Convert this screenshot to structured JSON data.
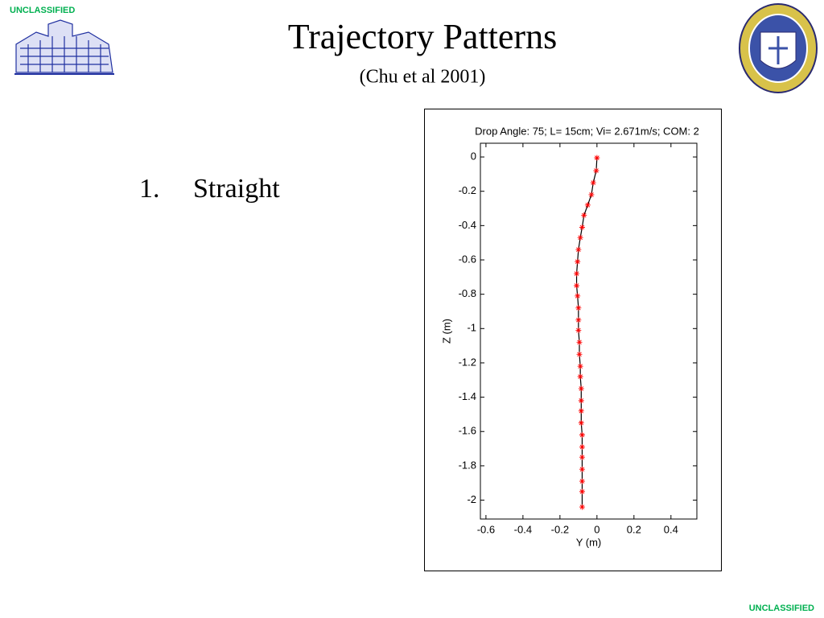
{
  "header": {
    "classification_top": "UNCLASSIFIED",
    "title": "Trajectory Patterns",
    "subtitle": "(Chu et al 2001)"
  },
  "list": {
    "items": [
      {
        "number": "1.",
        "text": "Straight"
      }
    ]
  },
  "footer": {
    "classification_bottom": "UNCLASSIFIED"
  },
  "chart_data": {
    "type": "line",
    "title": "Drop Angle: 75; L= 15cm; Vi= 2.671m/s; COM: 2",
    "x_label": "Y (m)",
    "y_label": "Z (m)",
    "x": [
      0,
      -0.004,
      -0.02,
      -0.03,
      -0.05,
      -0.07,
      -0.08,
      -0.09,
      -0.1,
      -0.105,
      -0.11,
      -0.11,
      -0.105,
      -0.1,
      -0.1,
      -0.1,
      -0.095,
      -0.095,
      -0.09,
      -0.09,
      -0.085,
      -0.085,
      -0.085,
      -0.085,
      -0.08,
      -0.08,
      -0.08,
      -0.08,
      -0.08,
      -0.08,
      -0.08
    ],
    "series": [
      {
        "color": "#000000",
        "marker_color": "#ff0000",
        "values": [
          -0.005,
          -0.08,
          -0.15,
          -0.22,
          -0.28,
          -0.34,
          -0.41,
          -0.47,
          -0.54,
          -0.61,
          -0.68,
          -0.75,
          -0.81,
          -0.88,
          -0.95,
          -1.01,
          -1.08,
          -1.15,
          -1.22,
          -1.28,
          -1.35,
          -1.42,
          -1.48,
          -1.55,
          -1.62,
          -1.69,
          -1.75,
          -1.82,
          -1.89,
          -1.95,
          -2.04
        ]
      }
    ],
    "xlim": [
      -0.63,
      0.54
    ],
    "ylim": [
      -2.11,
      0.08
    ],
    "xticks": [
      -0.6,
      -0.4,
      -0.2,
      0,
      0.2,
      0.4
    ],
    "yticks": [
      0,
      -0.2,
      -0.4,
      -0.6,
      -0.8,
      -1,
      -1.2,
      -1.4,
      -1.6,
      -1.8,
      -2
    ],
    "grid": false
  }
}
